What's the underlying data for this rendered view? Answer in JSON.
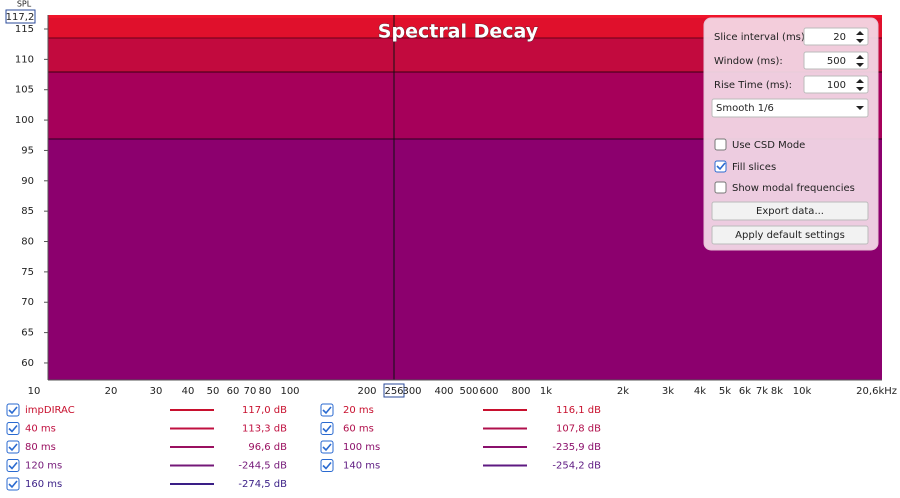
{
  "plot": {
    "title": "Spectral Decay",
    "y_axis_label": "SPL",
    "cursor_y": "117,2",
    "cursor_x": "256",
    "y_ticks": [
      "115",
      "110",
      "105",
      "100",
      "95",
      "90",
      "85",
      "80",
      "75",
      "70",
      "65",
      "60"
    ],
    "x_ticks": [
      "10",
      "20",
      "30",
      "40",
      "50",
      "60",
      "70",
      "80",
      "100",
      "200",
      "300",
      "400",
      "500",
      "600",
      "800",
      "1k",
      "2k",
      "3k",
      "4k",
      "5k",
      "6k",
      "7k",
      "8k",
      "10k",
      "20,6kHz"
    ]
  },
  "controls": {
    "slice_interval": {
      "label": "Slice interval (ms):",
      "value": "20"
    },
    "window": {
      "label": "Window (ms):",
      "value": "500"
    },
    "rise_time": {
      "label": "Rise Time (ms):",
      "value": "100"
    },
    "smoothing": "Smooth 1/6",
    "use_csd_mode": {
      "label": "Use CSD Mode",
      "checked": false
    },
    "fill_slices": {
      "label": "Fill slices",
      "checked": true
    },
    "show_modal": {
      "label": "Show modal frequencies",
      "checked": false
    },
    "export_button": "Export data...",
    "default_button": "Apply default settings"
  },
  "legend": [
    {
      "name": "impDIRAC",
      "value": "117,0 dB",
      "color": "#c8102e"
    },
    {
      "name": "20 ms",
      "value": "116,1 dB",
      "color": "#c8102e"
    },
    {
      "name": "40 ms",
      "value": "113,3 dB",
      "color": "#c01040"
    },
    {
      "name": "60 ms",
      "value": "107,8 dB",
      "color": "#b0104c"
    },
    {
      "name": "80 ms",
      "value": "96,6 dB",
      "color": "#9a1060"
    },
    {
      "name": "100 ms",
      "value": "-235,9 dB",
      "color": "#8a106c"
    },
    {
      "name": "120 ms",
      "value": "-244,5 dB",
      "color": "#741878"
    },
    {
      "name": "140 ms",
      "value": "-254,2 dB",
      "color": "#5e1a82"
    },
    {
      "name": "160 ms",
      "value": "-274,5 dB",
      "color": "#3a1e86"
    }
  ]
}
